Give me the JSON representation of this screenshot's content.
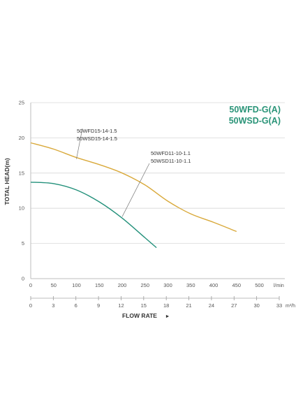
{
  "chart_data": {
    "type": "line",
    "title_lines": [
      "50WFD-G(A)",
      "50WSD-G(A)"
    ],
    "xlabel": "FLOW RATE",
    "xlabel_arrow": "►",
    "ylabel": "TOTAL HEAD(m)",
    "grid": true,
    "colors": {
      "accent": "#2a9478",
      "series_large": "#d9a93a",
      "series_small": "#22907a",
      "grid": "#d8d8d8",
      "axis_text": "#555555",
      "callout_line": "#777777"
    },
    "y_axis": {
      "min": 0,
      "max": 25,
      "ticks": [
        0,
        5,
        10,
        15,
        20,
        25
      ]
    },
    "x_axis_lmin": {
      "unit": "l/min",
      "min": 0,
      "max": 550,
      "ticks": [
        0,
        50,
        100,
        150,
        200,
        250,
        300,
        350,
        400,
        450,
        500
      ]
    },
    "x_axis_m3h": {
      "unit": "m³/h",
      "min": 0,
      "max": 33,
      "ticks": [
        0,
        3,
        6,
        9,
        12,
        15,
        18,
        21,
        24,
        27,
        30,
        33
      ]
    },
    "series": [
      {
        "labels": [
          "50WFD15-14-1.5",
          "50WSD15-14-1.5"
        ],
        "color_key": "series_large",
        "points": [
          [
            0,
            19.3
          ],
          [
            50,
            18.4
          ],
          [
            100,
            17.2
          ],
          [
            150,
            16.2
          ],
          [
            200,
            15.0
          ],
          [
            250,
            13.3
          ],
          [
            300,
            11.0
          ],
          [
            350,
            9.2
          ],
          [
            400,
            8.0
          ],
          [
            450,
            6.7
          ]
        ]
      },
      {
        "labels": [
          "50WFD11-10-1.1",
          "50WSD11-10-1.1"
        ],
        "color_key": "series_small",
        "points": [
          [
            0,
            13.7
          ],
          [
            50,
            13.5
          ],
          [
            100,
            12.6
          ],
          [
            150,
            10.9
          ],
          [
            200,
            8.6
          ],
          [
            250,
            5.8
          ],
          [
            275,
            4.4
          ]
        ]
      }
    ]
  }
}
